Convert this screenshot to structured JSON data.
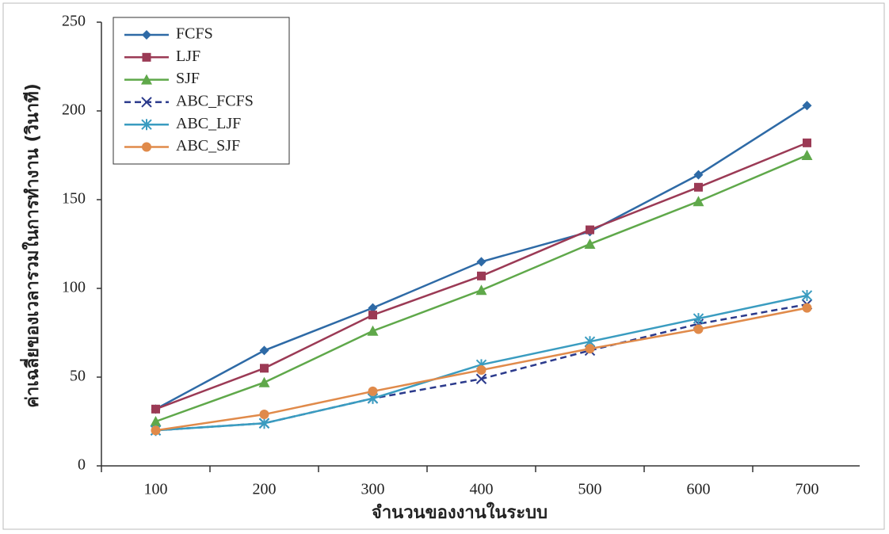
{
  "chart_data": {
    "type": "line",
    "x_label": "จำนวนของงานในระบบ",
    "y_label": "ค่าเฉลี่ยของเวลารวมในการทำงาน (วินาที)",
    "categories": [
      "100",
      "200",
      "300",
      "400",
      "500",
      "600",
      "700"
    ],
    "ylim": [
      0,
      250
    ],
    "yticks": [
      0,
      50,
      100,
      150,
      200,
      250
    ],
    "legend": "upper-left",
    "series": [
      {
        "name": "FCFS",
        "color": "#2e6aa6",
        "marker": "diamond",
        "dash": false,
        "values": [
          32,
          65,
          89,
          115,
          132,
          164,
          203
        ]
      },
      {
        "name": "LJF",
        "color": "#9b3a55",
        "marker": "square",
        "dash": false,
        "values": [
          32,
          55,
          85,
          107,
          133,
          157,
          182
        ]
      },
      {
        "name": "SJF",
        "color": "#5fa84a",
        "marker": "triangle",
        "dash": false,
        "values": [
          25,
          47,
          76,
          99,
          125,
          149,
          175
        ]
      },
      {
        "name": "ABC_FCFS",
        "color": "#2b3a8c",
        "marker": "x",
        "dash": true,
        "values": [
          20,
          24,
          38,
          49,
          65,
          80,
          91
        ]
      },
      {
        "name": "ABC_LJF",
        "color": "#3a9cc0",
        "marker": "star",
        "dash": false,
        "values": [
          20,
          24,
          38,
          57,
          70,
          83,
          96
        ]
      },
      {
        "name": "ABC_SJF",
        "color": "#e08a4a",
        "marker": "circle",
        "dash": false,
        "values": [
          20,
          29,
          42,
          54,
          66,
          77,
          89
        ]
      }
    ]
  }
}
